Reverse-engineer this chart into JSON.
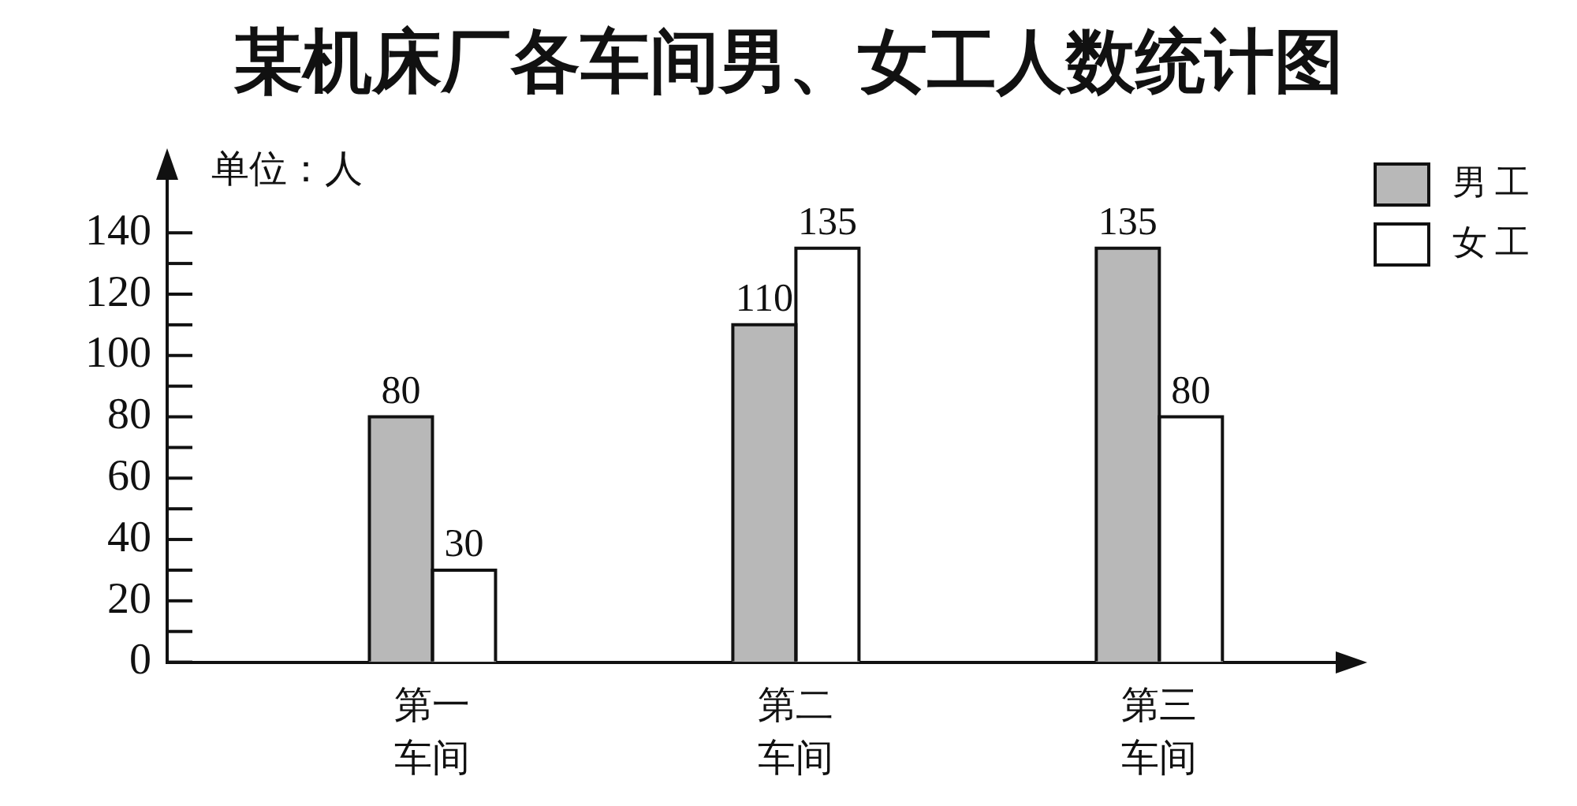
{
  "chart_data": {
    "type": "bar",
    "title": "某机床厂各车间男、女工人数统计图",
    "ylabel": "单位：人",
    "categories": [
      "第一车间",
      "第二车间",
      "第三车间"
    ],
    "series": [
      {
        "name": "男工",
        "color": "#b8b8b8",
        "values": [
          80,
          110,
          135
        ]
      },
      {
        "name": "女工",
        "color": "#ffffff",
        "values": [
          30,
          135,
          80
        ]
      }
    ],
    "ylim": [
      0,
      165
    ],
    "yticks": [
      0,
      {
        "value": 10,
        "label": null
      },
      20,
      {
        "value": 30,
        "label": null
      },
      40,
      {
        "value": 50,
        "label": null
      },
      60,
      {
        "value": 70,
        "label": null
      },
      80,
      {
        "value": 90,
        "label": null
      },
      100,
      {
        "value": 110,
        "label": null
      },
      120,
      {
        "value": 130,
        "label": null
      },
      140
    ],
    "data_labels": true,
    "legend": "top right"
  }
}
